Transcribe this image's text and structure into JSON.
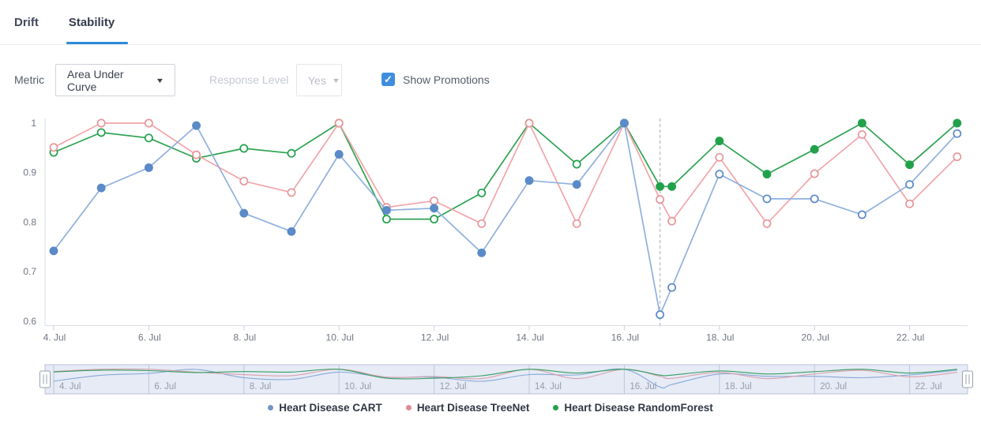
{
  "tabs": {
    "drift": {
      "label": "Drift"
    },
    "stability": {
      "label": "Stability"
    }
  },
  "controls": {
    "metric_label": "Metric",
    "metric_value": "Area Under Curve",
    "response_level_label": "Response Level",
    "response_level_value": "Yes",
    "show_promotions_label": "Show Promotions",
    "show_promotions_checked": true,
    "checkbox_color": "#3e8ede"
  },
  "chart_data": {
    "type": "line",
    "title": "",
    "xlabel": "",
    "ylabel": "",
    "x_days": [
      4,
      5,
      6,
      7,
      8,
      9,
      10,
      11,
      12,
      13,
      14,
      15,
      16,
      16.75,
      17,
      18,
      19,
      20,
      21,
      22,
      23
    ],
    "x_ticks": [
      {
        "day": 4,
        "label": "4. Jul"
      },
      {
        "day": 6,
        "label": "6. Jul"
      },
      {
        "day": 8,
        "label": "8. Jul"
      },
      {
        "day": 10,
        "label": "10. Jul"
      },
      {
        "day": 12,
        "label": "12. Jul"
      },
      {
        "day": 14,
        "label": "14. Jul"
      },
      {
        "day": 16,
        "label": "16. Jul"
      },
      {
        "day": 18,
        "label": "18. Jul"
      },
      {
        "day": 20,
        "label": "20. Jul"
      },
      {
        "day": 22,
        "label": "22. Jul"
      }
    ],
    "y_ticks": [
      {
        "value": 1,
        "label": "1"
      },
      {
        "value": 0.9,
        "label": "0.9"
      },
      {
        "value": 0.8,
        "label": "0.8"
      },
      {
        "value": 0.7,
        "label": "0.7"
      },
      {
        "value": 0.6,
        "label": "0.6"
      }
    ],
    "ylim": [
      0.6,
      1.0
    ],
    "grid": false,
    "promotion_line_day": 16.75,
    "promotion_line_color": "#b8b8b8",
    "series": [
      {
        "name": "Heart Disease CART",
        "line_color": "#8fb0dd",
        "marker_color": "#5a8ac8",
        "marker_before_promotion": "filled",
        "marker_after_promotion": "open",
        "values": [
          0.742,
          0.869,
          0.91,
          0.995,
          0.818,
          0.781,
          0.937,
          0.824,
          0.828,
          0.738,
          0.884,
          0.876,
          1.0,
          0.613,
          0.668,
          0.897,
          0.847,
          0.847,
          0.815,
          0.876,
          0.979
        ]
      },
      {
        "name": "Heart Disease TreeNet",
        "line_color": "#f2a5a9",
        "marker_color": "#e8969b",
        "marker_before_promotion": "open",
        "marker_after_promotion": "open",
        "values": [
          0.951,
          1.0,
          1.0,
          0.936,
          0.883,
          0.86,
          1.0,
          0.83,
          0.843,
          0.797,
          1.0,
          0.797,
          1.0,
          0.846,
          0.802,
          0.931,
          0.797,
          0.898,
          0.977,
          0.837,
          0.932
        ]
      },
      {
        "name": "Heart Disease RandomForest",
        "line_color": "#2da351",
        "marker_color": "#22a14b",
        "marker_before_promotion": "open",
        "marker_after_promotion": "filled",
        "values": [
          0.941,
          0.981,
          0.97,
          0.929,
          0.949,
          0.939,
          1.0,
          0.806,
          0.806,
          0.859,
          1.0,
          0.917,
          1.0,
          0.872,
          0.872,
          0.964,
          0.897,
          0.947,
          1.0,
          0.916,
          1.0
        ]
      }
    ],
    "legend": [
      {
        "label": "Heart Disease CART",
        "color": "#6f95c6"
      },
      {
        "label": "Heart Disease TreeNet",
        "color": "#de8b91"
      },
      {
        "label": "Heart Disease RandomForest",
        "color": "#22a14b"
      }
    ],
    "legend_position": "bottom-center",
    "navigator": {
      "mask_color": "rgba(101,132,194,0.16)",
      "outline_color": "#b9c1d8",
      "grid_color": "#cdd3e5",
      "label_color": "#939cae"
    }
  }
}
